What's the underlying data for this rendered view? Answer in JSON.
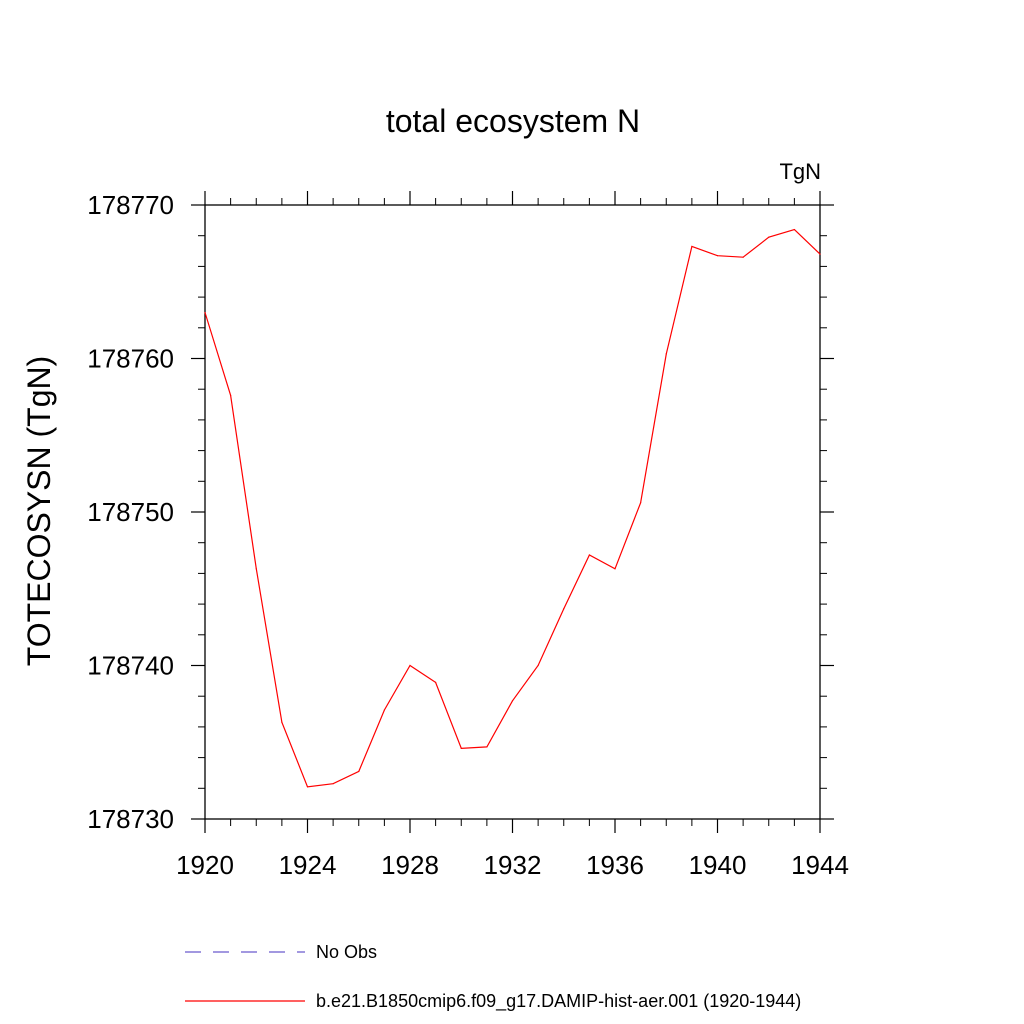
{
  "chart_data": {
    "type": "line",
    "title": "total ecosystem N",
    "units_label": "TgN",
    "ylabel": "TOTECOSYSN  (TgN)",
    "xlabel": "",
    "xlim": [
      1920,
      1944
    ],
    "ylim": [
      178730,
      178770
    ],
    "x_ticks": [
      "1920",
      "1924",
      "1928",
      "1932",
      "1936",
      "1940",
      "1944"
    ],
    "y_ticks": [
      "178730",
      "178740",
      "178750",
      "178760",
      "178770"
    ],
    "x_minor_step": 1,
    "y_minor_step": 2,
    "grid": false,
    "legend_position": "bottom",
    "series": [
      {
        "name": "No Obs",
        "color": "#6a5acd",
        "dash": "dashed",
        "x": [],
        "y": []
      },
      {
        "name": "b.e21.B1850cmip6.f09_g17.DAMIP-hist-aer.001 (1920-1944)",
        "color": "#ff0000",
        "dash": "solid",
        "x": [
          1920,
          1921,
          1922,
          1923,
          1924,
          1925,
          1926,
          1927,
          1928,
          1929,
          1930,
          1931,
          1932,
          1933,
          1934,
          1935,
          1936,
          1937,
          1938,
          1939,
          1940,
          1941,
          1942,
          1943,
          1944
        ],
        "y": [
          178763.0,
          178757.6,
          178746.3,
          178736.3,
          178732.1,
          178732.3,
          178733.1,
          178737.1,
          178740.0,
          178738.9,
          178734.6,
          178734.7,
          178737.7,
          178740.0,
          178743.7,
          178747.2,
          178746.3,
          178750.6,
          178760.3,
          178767.3,
          178766.7,
          178766.6,
          178767.9,
          178768.4,
          178766.8
        ]
      }
    ]
  }
}
